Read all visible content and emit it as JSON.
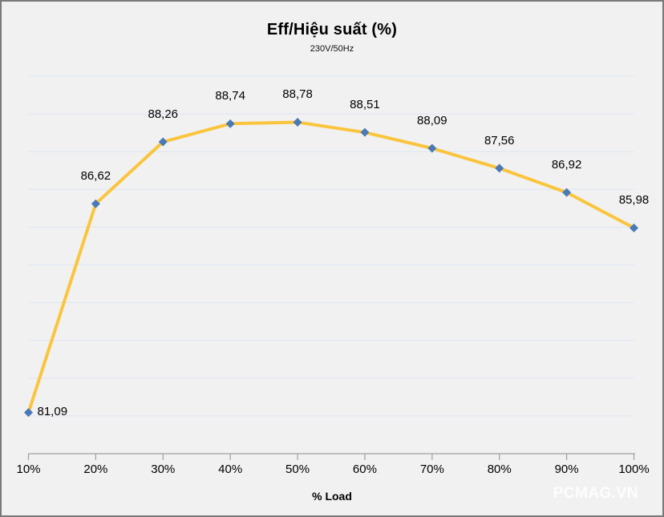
{
  "chart": {
    "title": "Eff/Hiệu suất (%)",
    "subtitle": "230V/50Hz",
    "xlabel": "% Load",
    "watermark": "PCMAG.VN"
  },
  "chart_data": {
    "type": "line",
    "title": "Eff/Hiệu suất (%)",
    "subtitle": "230V/50Hz",
    "xlabel": "% Load",
    "ylabel": "",
    "categories": [
      "10%",
      "20%",
      "30%",
      "40%",
      "50%",
      "60%",
      "70%",
      "80%",
      "90%",
      "100%"
    ],
    "values": [
      81.09,
      86.62,
      88.26,
      88.74,
      88.78,
      88.51,
      88.09,
      87.56,
      86.92,
      85.98
    ],
    "labels": [
      "81,09",
      "86,62",
      "88,26",
      "88,74",
      "88,78",
      "88,51",
      "88,09",
      "87,56",
      "86,92",
      "85,98"
    ],
    "series_name": "Eff",
    "ylim": [
      80,
      90.4
    ],
    "ytick_step": 1,
    "grid": "horizontal",
    "legend": "none",
    "marker": "diamond",
    "label_position": "above, first point to the right"
  },
  "colors": {
    "background": "#F1F1F2",
    "frame_border": "#7A7A7A",
    "gridline": "#DCE5F1",
    "axis": "#A0A0A0",
    "line": "#FAC53D",
    "marker": "#4A79B8",
    "label_text": "#000000",
    "watermark_text": "#FFFFFF"
  }
}
